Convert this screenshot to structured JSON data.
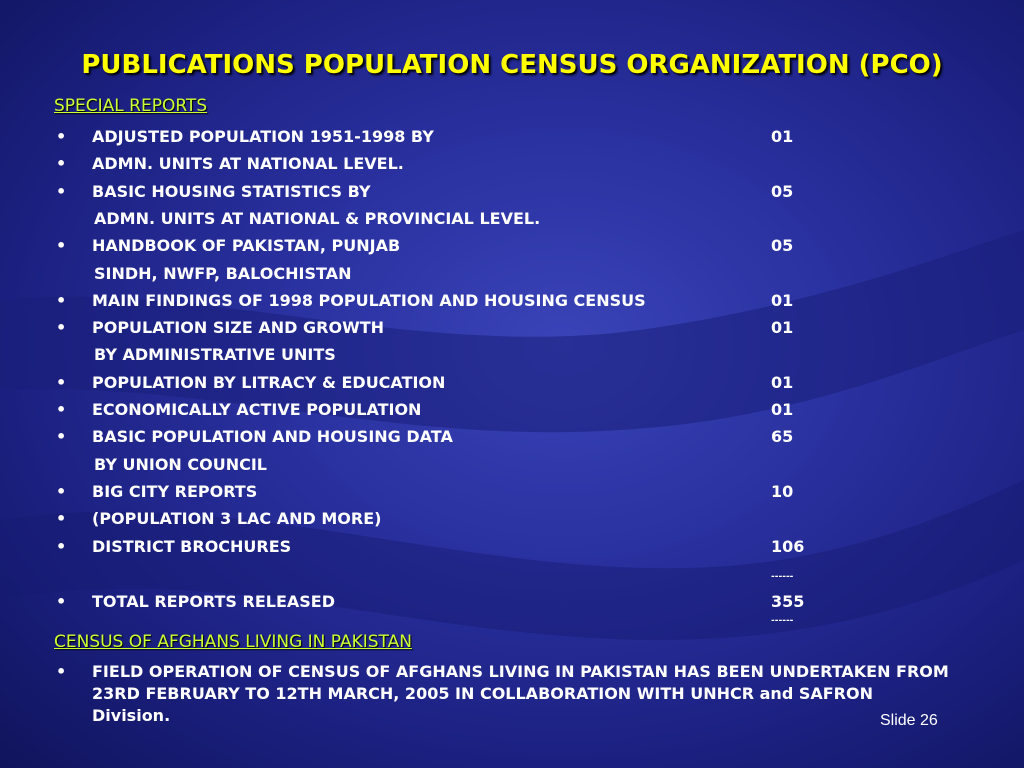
{
  "title": "PUBLICATIONS POPULATION CENSUS ORGANIZATION (PCO)",
  "special_reports": {
    "heading": "SPECIAL REPORTS",
    "rows": [
      {
        "bullet": "•",
        "label": "ADJUSTED POPULATION 1951-1998 BY",
        "count": "01"
      },
      {
        "bullet": "•",
        "label": "ADMN. UNITS AT NATIONAL LEVEL.",
        "count": ""
      },
      {
        "bullet": "•",
        "label": "BASIC HOUSING STATISTICS BY",
        "count": "05"
      },
      {
        "bullet": "",
        "label": "ADMN. UNITS AT NATIONAL & PROVINCIAL LEVEL.",
        "count": ""
      },
      {
        "bullet": "•",
        "label": "HANDBOOK OF PAKISTAN, PUNJAB",
        "count": "05"
      },
      {
        "bullet": "",
        "label": "SINDH, NWFP, BALOCHISTAN",
        "count": ""
      },
      {
        "bullet": "•",
        "label": "MAIN FINDINGS OF 1998 POPULATION AND HOUSING CENSUS",
        "count": "01"
      },
      {
        "bullet": "•",
        "label": "POPULATION SIZE AND GROWTH",
        "count": "01"
      },
      {
        "bullet": "",
        "label": "BY ADMINISTRATIVE UNITS",
        "count": ""
      },
      {
        "bullet": "•",
        "label": "POPULATION BY LITRACY & EDUCATION",
        "count": "01"
      },
      {
        "bullet": "•",
        "label": "ECONOMICALLY  ACTIVE POPULATION",
        "count": "01"
      },
      {
        "bullet": "•",
        "label": "BASIC POPULATION AND HOUSING DATA",
        "count": "65"
      },
      {
        "bullet": "",
        "label": "BY UNION COUNCIL",
        "count": ""
      },
      {
        "bullet": "•",
        "label": "BIG CITY REPORTS",
        "count": "10"
      },
      {
        "bullet": "•",
        "label": "(POPULATION 3 LAC AND MORE)",
        "count": ""
      },
      {
        "bullet": "•",
        "label": "DISTRICT BROCHURES",
        "count": "106"
      }
    ],
    "separator_1": "------",
    "total": {
      "bullet": "•",
      "label": "TOTAL REPORTS RELEASED",
      "count": "355"
    },
    "separator_2": "------"
  },
  "afghans": {
    "heading": "CENSUS OF AFGHANS LIVING IN PAKISTAN",
    "bullet": "•",
    "text": "FIELD OPERATION OF CENSUS OF AFGHANS LIVING IN PAKISTAN HAS BEEN UNDERTAKEN FROM 23RD FEBRUARY TO 12TH MARCH, 2005 IN COLLABORATION WITH UNHCR and SAFRON Division."
  },
  "slide_number": "Slide 26",
  "colors": {
    "background": "#2a31a0",
    "title": "#ffff00",
    "heading": "#ccff33",
    "body_text": "#ffffff"
  }
}
